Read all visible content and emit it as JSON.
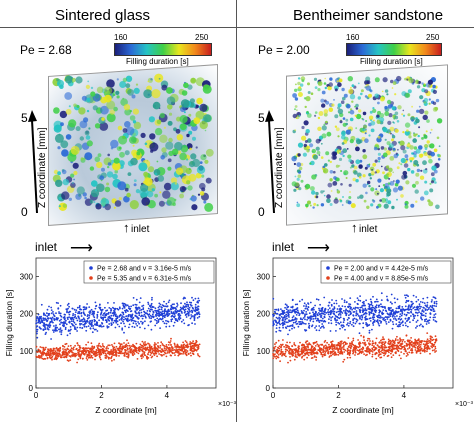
{
  "panels": {
    "left": {
      "title": "Sintered glass",
      "pe_label": "Pe = 2.68",
      "colorbar": {
        "min": "160",
        "max": "250",
        "label": "Filling duration [s]"
      },
      "axis_label": "Z coordinate [mm]",
      "tick_top": "5",
      "tick_bottom": "0",
      "inlet_label": "inlet"
    },
    "right": {
      "title": "Bentheimer sandstone",
      "pe_label": "Pe = 2.00",
      "colorbar": {
        "min": "160",
        "max": "250",
        "label": "Filling duration [s]"
      },
      "axis_label": "Z coordinate [mm]",
      "tick_top": "5",
      "tick_bottom": "0",
      "inlet_label": "inlet"
    }
  },
  "colors": {
    "blue_series": "#1f3fd6",
    "red_series": "#e2401c"
  },
  "chart_data": [
    {
      "type": "scatter",
      "inlet_label": "inlet",
      "xlabel": "Z coordinate [m]",
      "x_exponent": "×10⁻³",
      "ylabel": "Filling duration [s]",
      "xlim": [
        0,
        0.0055
      ],
      "ylim": [
        0,
        350
      ],
      "xticks": [
        "0",
        "2",
        "4"
      ],
      "yticks": [
        "0",
        "100",
        "200",
        "300"
      ],
      "grid": false,
      "legend_position": "top-right",
      "series": [
        {
          "name": "Pe = 2.68 and v = 3.16e-5 m/s",
          "color": "#1f3fd6",
          "x_range": [
            0,
            0.005
          ],
          "y_start": 178,
          "y_end": 210,
          "spread": 18
        },
        {
          "name": "Pe = 5.35 and v = 6.31e-5 m/s",
          "color": "#e2401c",
          "x_range": [
            0,
            0.005
          ],
          "y_start": 92,
          "y_end": 108,
          "spread": 10
        }
      ]
    },
    {
      "type": "scatter",
      "inlet_label": "inlet",
      "xlabel": "Z coordinate [m]",
      "x_exponent": "×10⁻³",
      "ylabel": "Filling duration [s]",
      "xlim": [
        0,
        0.0055
      ],
      "ylim": [
        0,
        350
      ],
      "xticks": [
        "0",
        "2",
        "4"
      ],
      "yticks": [
        "0",
        "100",
        "200",
        "300"
      ],
      "grid": false,
      "legend_position": "top-right",
      "series": [
        {
          "name": "Pe = 2.00 and v = 4.42e-5 m/s",
          "color": "#1f3fd6",
          "x_range": [
            0,
            0.005
          ],
          "y_start": 190,
          "y_end": 208,
          "spread": 20
        },
        {
          "name": "Pe = 4.00 and v = 8.85e-5 m/s",
          "color": "#e2401c",
          "x_range": [
            0,
            0.005
          ],
          "y_start": 98,
          "y_end": 115,
          "spread": 12
        }
      ]
    }
  ]
}
